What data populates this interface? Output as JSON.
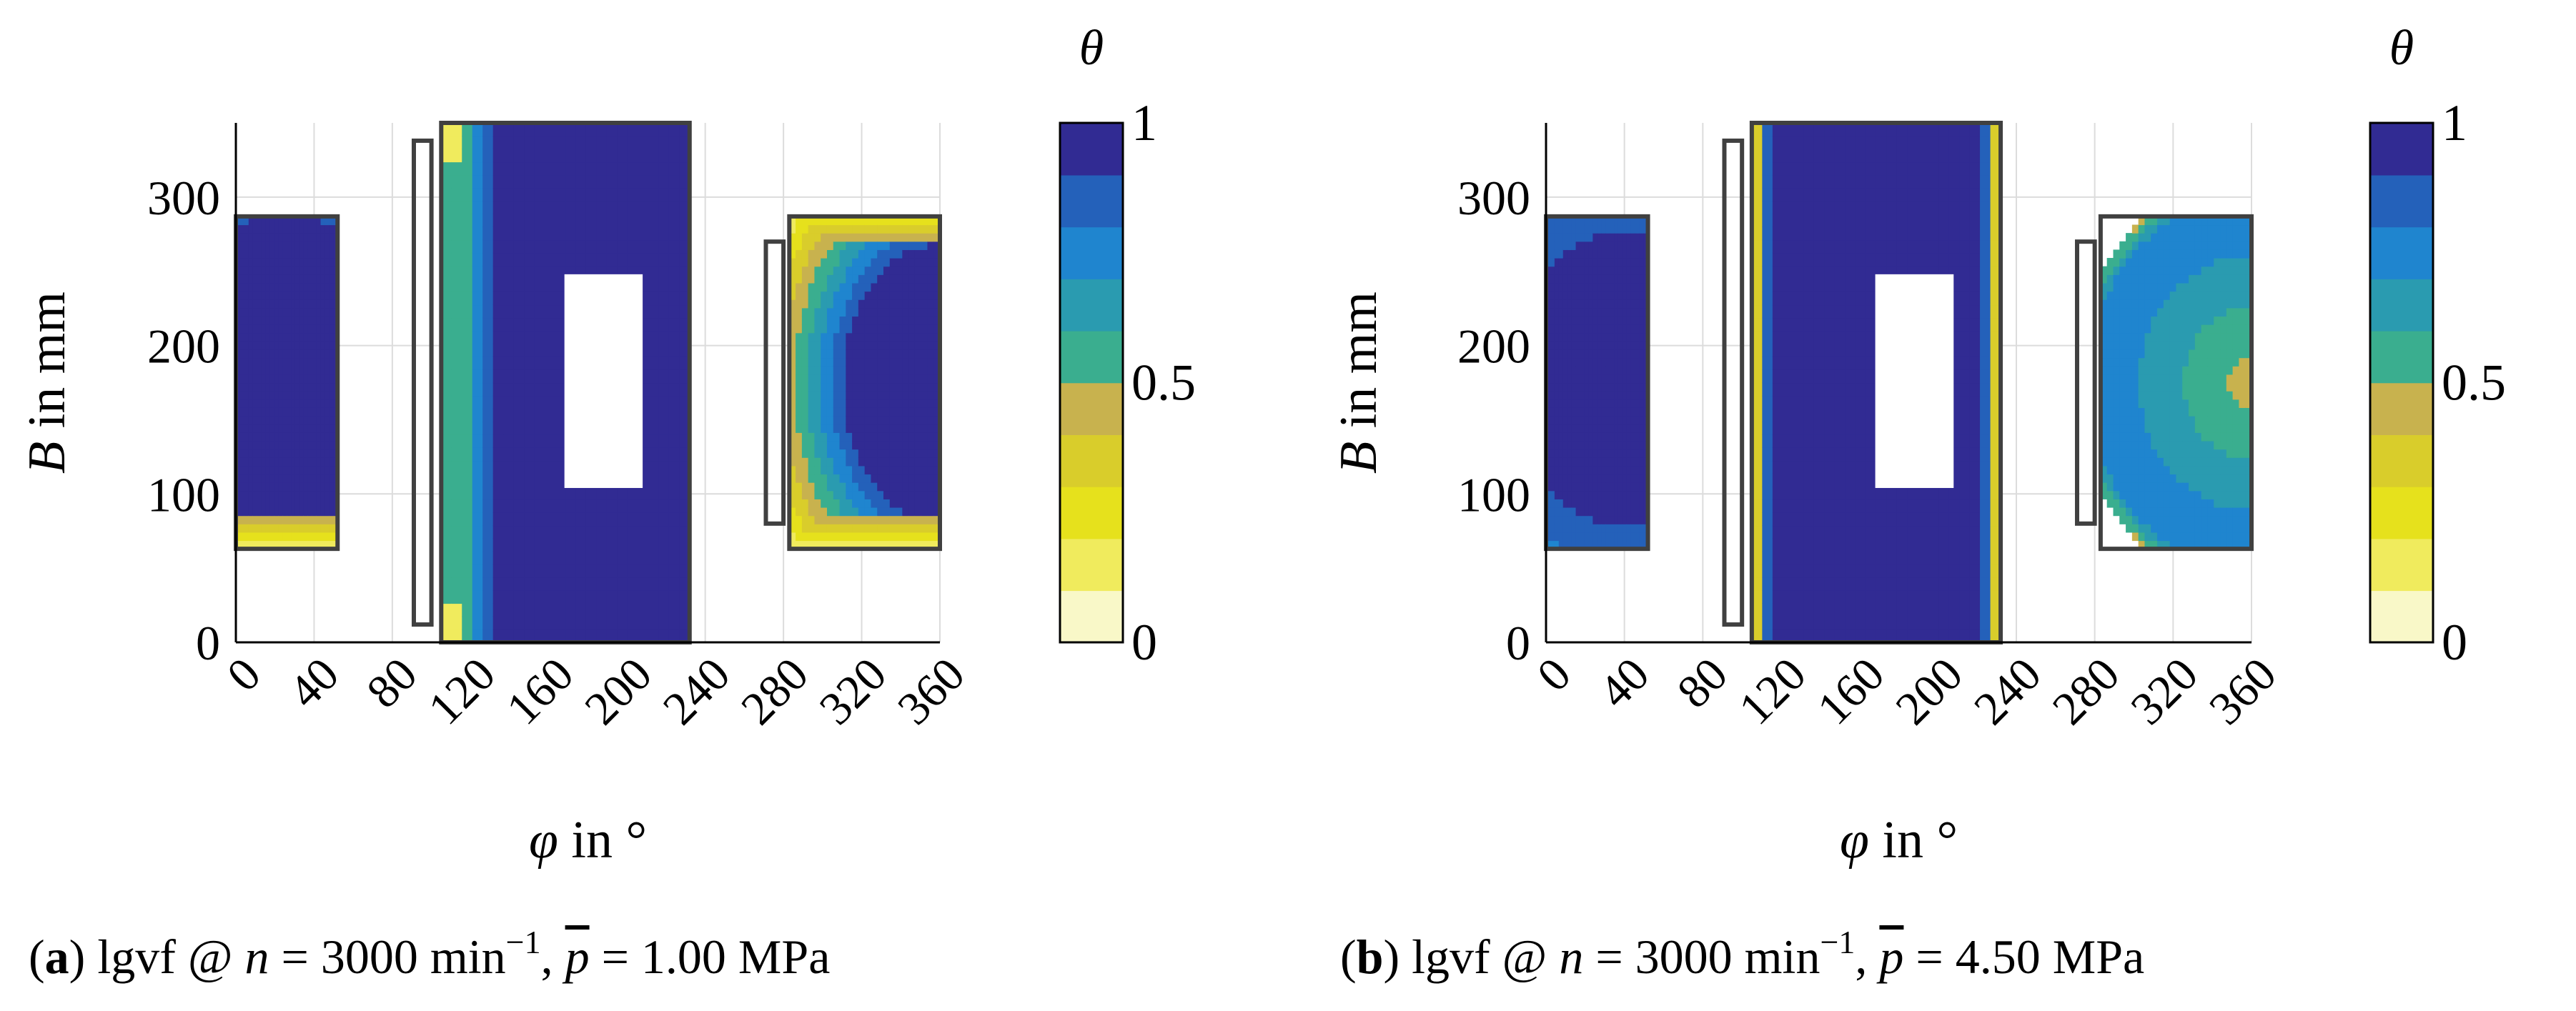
{
  "chart_data": [
    {
      "id": "a",
      "type": "heatmap",
      "caption": {
        "label": "a",
        "method": "lgvf @",
        "n_sym": "n",
        "eq1": "= 3000 min",
        "exp": "−1",
        "p_sym": "p",
        "eq2": "= 1.00 MPa"
      },
      "xlabel_sym": "φ",
      "xlabel_text": "in °",
      "ylabel_sym": "B",
      "ylabel_text": "in mm",
      "xlim": [
        0,
        360
      ],
      "ylim": [
        0,
        350
      ],
      "xticks": [
        0,
        40,
        80,
        120,
        160,
        200,
        240,
        280,
        320,
        360
      ],
      "yticks": [
        0,
        100,
        200,
        300
      ],
      "colorbar": {
        "label": "θ",
        "range": [
          0,
          1
        ],
        "ticks": [
          0,
          0.5,
          1
        ],
        "levels": 10,
        "colors": [
          "#f9f8c8",
          "#f0eb5d",
          "#e6e11c",
          "#d9cd2b",
          "#c8b24e",
          "#3aae8f",
          "#2a9bb0",
          "#1f85cf",
          "#2461ba",
          "#312b93"
        ]
      },
      "regions": [
        {
          "name": "pad-1",
          "phi": [
            0,
            52
          ],
          "b": [
            63,
            287
          ],
          "mode": "ellipse",
          "cx": 25,
          "cy": 178,
          "rx": 55,
          "ry": 100,
          "edge": 0.62,
          "top_dry": 0,
          "bottom_dry": 0.75
        },
        {
          "name": "pad-2",
          "phi": [
            105,
            232
          ],
          "b": [
            0,
            350
          ],
          "mode": "full",
          "low_phi": [
            106,
            116
          ],
          "low_b_dry": [
            0.45,
            0.55
          ],
          "edge": 0.55
        },
        {
          "name": "pad-3",
          "phi": [
            283,
            360
          ],
          "b": [
            63,
            287
          ],
          "mode": "ellipse",
          "cx": 360,
          "cy": 175,
          "rx": 45,
          "ry": 85,
          "edge": 0.72,
          "top_dry": 0.9,
          "bottom_dry": 0.9
        }
      ],
      "outlines": [
        {
          "phi": [
            0,
            52
          ],
          "b": [
            63,
            287
          ]
        },
        {
          "phi": [
            91,
            100
          ],
          "b": [
            12,
            338
          ]
        },
        {
          "phi": [
            105,
            232
          ],
          "b": [
            0,
            350
          ]
        },
        {
          "phi": [
            271,
            280
          ],
          "b": [
            80,
            270
          ]
        },
        {
          "phi": [
            283,
            360
          ],
          "b": [
            63,
            287
          ]
        }
      ],
      "hole": {
        "phi": [
          168,
          208
        ],
        "b": [
          104,
          248
        ]
      }
    },
    {
      "id": "b",
      "type": "heatmap",
      "caption": {
        "label": "b",
        "method": "lgvf @",
        "n_sym": "n",
        "eq1": "= 3000 min",
        "exp": "−1",
        "p_sym": "p",
        "eq2": "= 4.50 MPa"
      },
      "xlabel_sym": "φ",
      "xlabel_text": "in °",
      "ylabel_sym": "B",
      "ylabel_text": "in mm",
      "xlim": [
        0,
        360
      ],
      "ylim": [
        0,
        350
      ],
      "xticks": [
        0,
        40,
        80,
        120,
        160,
        200,
        240,
        280,
        320,
        360
      ],
      "yticks": [
        0,
        100,
        200,
        300
      ],
      "colorbar": {
        "label": "θ",
        "range": [
          0,
          1
        ],
        "ticks": [
          0,
          0.5,
          1
        ],
        "levels": 10,
        "colors": [
          "#f9f8c8",
          "#f0eb5d",
          "#e6e11c",
          "#d9cd2b",
          "#c8b24e",
          "#3aae8f",
          "#2a9bb0",
          "#1f85cf",
          "#2461ba",
          "#312b93"
        ]
      },
      "regions": [
        {
          "name": "pad-1",
          "phi": [
            0,
            52
          ],
          "b": [
            63,
            287
          ],
          "mode": "ellipse",
          "cx": 38,
          "cy": 178,
          "rx": 45,
          "ry": 80,
          "edge": 0.3
        },
        {
          "name": "pad-2",
          "phi": [
            105,
            232
          ],
          "b": [
            0,
            350
          ],
          "mode": "center",
          "edge": 0.35
        },
        {
          "name": "pad-3",
          "phi": [
            283,
            360
          ],
          "b": [
            63,
            287
          ],
          "mode": "inverse",
          "cx": 360,
          "cy": 175,
          "rx": 80,
          "ry": 120,
          "edge": 0.45
        }
      ],
      "outlines": [
        {
          "phi": [
            0,
            52
          ],
          "b": [
            63,
            287
          ]
        },
        {
          "phi": [
            91,
            100
          ],
          "b": [
            12,
            338
          ]
        },
        {
          "phi": [
            105,
            232
          ],
          "b": [
            0,
            350
          ]
        },
        {
          "phi": [
            271,
            280
          ],
          "b": [
            80,
            270
          ]
        },
        {
          "phi": [
            283,
            360
          ],
          "b": [
            63,
            287
          ]
        }
      ],
      "hole": {
        "phi": [
          168,
          208
        ],
        "b": [
          104,
          248
        ]
      }
    }
  ]
}
